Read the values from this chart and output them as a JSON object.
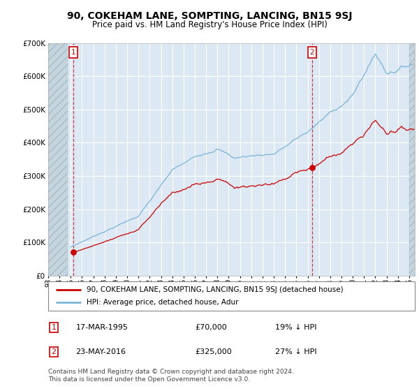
{
  "title": "90, COKEHAM LANE, SOMPTING, LANCING, BN15 9SJ",
  "subtitle": "Price paid vs. HM Land Registry's House Price Index (HPI)",
  "legend_line1": "90, COKEHAM LANE, SOMPTING, LANCING, BN15 9SJ (detached house)",
  "legend_line2": "HPI: Average price, detached house, Adur",
  "annotation1_date": "17-MAR-1995",
  "annotation1_price": "£70,000",
  "annotation1_hpi": "19% ↓ HPI",
  "annotation2_date": "23-MAY-2016",
  "annotation2_price": "£325,000",
  "annotation2_hpi": "27% ↓ HPI",
  "footer": "Contains HM Land Registry data © Crown copyright and database right 2024.\nThis data is licensed under the Open Government Licence v3.0.",
  "sale1_year": 1995.21,
  "sale1_price": 70000,
  "sale2_year": 2016.39,
  "sale2_price": 325000,
  "hpi_color": "#7ab4d8",
  "price_color": "#cc0000",
  "background_color": "#dce9f5",
  "anno_color": "#cc0000",
  "ylim_max": 700000,
  "xlim_min": 1993.0,
  "xlim_max": 2025.5
}
